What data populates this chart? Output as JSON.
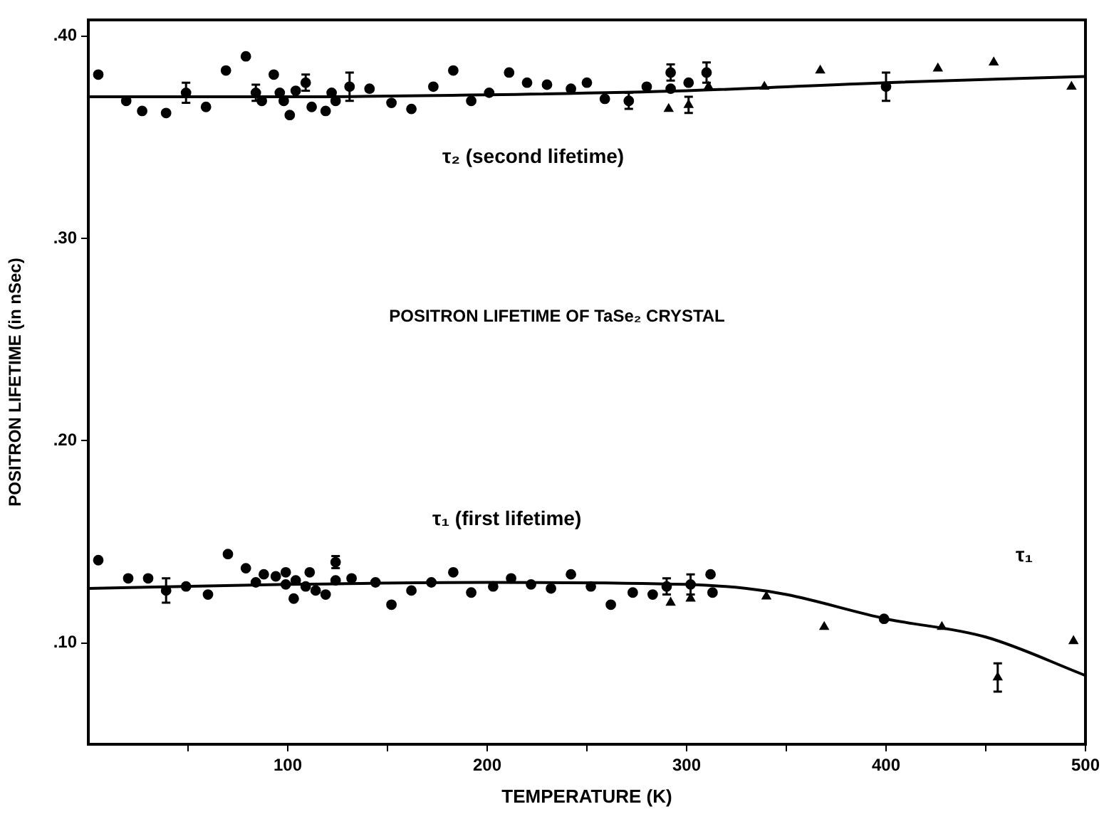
{
  "chart_data": {
    "type": "scatter",
    "title": "POSITRON LIFETIME OF TaSe₂ CRYSTAL",
    "xlabel": "TEMPERATURE (K)",
    "ylabel": "POSITRON LIFETIME (in nSec)",
    "xlim": [
      0,
      500
    ],
    "ylim": [
      0.05,
      0.408
    ],
    "xticks": [
      {
        "value": 50,
        "label": null
      },
      100,
      {
        "value": 150,
        "label": null
      },
      200,
      {
        "value": 250,
        "label": null
      },
      300,
      {
        "value": 350,
        "label": null
      },
      400,
      {
        "value": 450,
        "label": null
      },
      500
    ],
    "yticks": [
      {
        "value": 0.1,
        "label": ".10"
      },
      {
        "value": 0.2,
        "label": ".20"
      },
      {
        "value": 0.3,
        "label": ".30"
      },
      {
        "value": 0.4,
        "label": ".40"
      }
    ],
    "grid": false,
    "legend": false,
    "annotations": [
      "τ₂ (second lifetime)",
      "τ₁ (first lifetime)",
      "τ₁"
    ],
    "series": [
      {
        "marker": "circle",
        "color": "#000000",
        "x": [
          5,
          19,
          27,
          39,
          49,
          59,
          69,
          79,
          84,
          87,
          93,
          96,
          98,
          101,
          104,
          109,
          112,
          119,
          122,
          124,
          131,
          141,
          152,
          162,
          173,
          183,
          192,
          201,
          211,
          220,
          230,
          242,
          250,
          259,
          271,
          280,
          292,
          292,
          301,
          310,
          400
        ],
        "values": [
          0.381,
          0.368,
          0.363,
          0.362,
          0.372,
          0.365,
          0.383,
          0.39,
          0.372,
          0.368,
          0.381,
          0.372,
          0.368,
          0.361,
          0.373,
          0.377,
          0.365,
          0.363,
          0.372,
          0.368,
          0.375,
          0.374,
          0.367,
          0.364,
          0.375,
          0.383,
          0.368,
          0.372,
          0.382,
          0.377,
          0.376,
          0.374,
          0.377,
          0.369,
          0.368,
          0.375,
          0.382,
          0.374,
          0.377,
          0.382,
          0.375
        ],
        "errors": [
          null,
          null,
          null,
          null,
          0.005,
          null,
          null,
          null,
          0.004,
          null,
          null,
          null,
          null,
          null,
          null,
          0.004,
          null,
          null,
          null,
          null,
          0.007,
          null,
          null,
          null,
          null,
          null,
          null,
          null,
          null,
          null,
          null,
          null,
          null,
          null,
          0.004,
          null,
          0.004,
          null,
          null,
          0.005,
          0.007
        ]
      },
      {
        "marker": "triangle",
        "color": "#000000",
        "x": [
          291,
          301,
          311,
          339,
          367,
          426,
          454,
          493
        ],
        "values": [
          0.364,
          0.366,
          0.375,
          0.375,
          0.383,
          0.384,
          0.387,
          0.375
        ],
        "errors": [
          null,
          0.004,
          null,
          null,
          null,
          null,
          null,
          null
        ]
      },
      {
        "marker": "circle",
        "color": "#000000",
        "x": [
          5,
          20,
          30,
          39,
          49,
          60,
          70,
          79,
          84,
          88,
          94,
          99,
          99,
          104,
          103,
          109,
          111,
          114,
          119,
          124,
          124,
          132,
          144,
          152,
          162,
          172,
          183,
          192,
          203,
          212,
          222,
          232,
          242,
          252,
          262,
          273,
          283,
          290,
          302,
          312,
          313,
          399
        ],
        "values": [
          0.141,
          0.132,
          0.132,
          0.126,
          0.128,
          0.124,
          0.144,
          0.137,
          0.13,
          0.134,
          0.133,
          0.135,
          0.129,
          0.131,
          0.122,
          0.128,
          0.135,
          0.126,
          0.124,
          0.14,
          0.131,
          0.132,
          0.13,
          0.119,
          0.126,
          0.13,
          0.135,
          0.125,
          0.128,
          0.132,
          0.129,
          0.127,
          0.134,
          0.128,
          0.119,
          0.125,
          0.124,
          0.128,
          0.129,
          0.134,
          0.125,
          0.112
        ],
        "errors": [
          null,
          null,
          null,
          0.006,
          null,
          null,
          null,
          null,
          null,
          null,
          null,
          null,
          null,
          null,
          null,
          null,
          null,
          null,
          null,
          0.003,
          null,
          null,
          null,
          null,
          null,
          null,
          null,
          null,
          null,
          null,
          null,
          null,
          null,
          null,
          null,
          null,
          null,
          0.004,
          0.005,
          null,
          null,
          null
        ]
      },
      {
        "marker": "triangle",
        "color": "#000000",
        "x": [
          340,
          369,
          428,
          456,
          494
        ],
        "values": [
          0.123,
          0.108,
          0.108,
          0.083,
          0.101
        ],
        "errors": [
          null,
          null,
          null,
          0.007,
          null
        ]
      },
      {
        "marker": "triangle",
        "color": "#000000",
        "x": [
          292,
          302
        ],
        "values": [
          0.12,
          0.122
        ]
      },
      {
        "type": "line",
        "marker": "none",
        "color": "#000000",
        "x": [
          0,
          100,
          200,
          300,
          400,
          500
        ],
        "values": [
          0.37,
          0.37,
          0.371,
          0.373,
          0.377,
          0.38
        ]
      },
      {
        "type": "line",
        "marker": "none",
        "color": "#000000",
        "x": [
          0,
          100,
          200,
          300,
          330,
          350,
          400,
          450,
          500
        ],
        "values": [
          0.127,
          0.129,
          0.13,
          0.129,
          0.127,
          0.124,
          0.112,
          0.103,
          0.084
        ]
      }
    ]
  }
}
